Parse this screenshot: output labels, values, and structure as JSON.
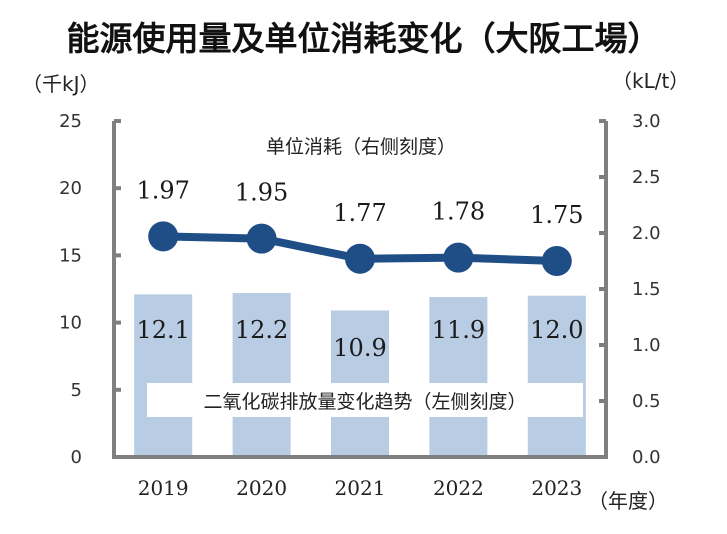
{
  "chart_data": {
    "type": "bar+line",
    "title": "能源使用量及单位消耗变化（大阪工場）",
    "categories": [
      "2019",
      "2020",
      "2021",
      "2022",
      "2023"
    ],
    "xlabel": "（年度）",
    "ylabel_left": "（千kJ）",
    "ylabel_right": "（kL/t）",
    "ylim_left": [
      0,
      25
    ],
    "yticks_left": [
      "0",
      "5",
      "10",
      "15",
      "20",
      "25"
    ],
    "ylim_right": [
      0,
      3.0
    ],
    "yticks_right": [
      "0.0",
      "0.5",
      "1.0",
      "1.5",
      "2.0",
      "2.5",
      "3.0"
    ],
    "legend": "none",
    "grid": false,
    "series": [
      {
        "name": "二氧化碳排放量变化趋势（左侧刻度）",
        "type": "bar",
        "axis": "left",
        "color": "#b8cce4",
        "values": [
          12.1,
          12.2,
          10.9,
          11.9,
          12.0
        ],
        "labels": [
          "12.1",
          "12.2",
          "10.9",
          "11.9",
          "12.0"
        ]
      },
      {
        "name": "单位消耗（右侧刻度）",
        "type": "line",
        "axis": "right",
        "color": "#1f4e86",
        "values": [
          1.97,
          1.95,
          1.77,
          1.78,
          1.75
        ],
        "labels": [
          "1.97",
          "1.95",
          "1.77",
          "1.78",
          "1.75"
        ]
      }
    ]
  }
}
